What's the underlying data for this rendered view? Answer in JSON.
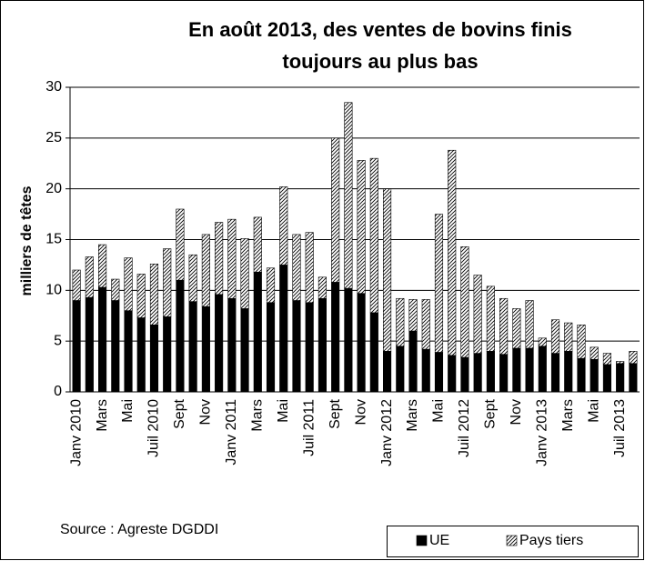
{
  "chart_data": {
    "type": "stacked_bar",
    "title": [
      "En août 2013, des ventes de bovins finis",
      "toujours au plus bas"
    ],
    "y_label": "milliers de têtes",
    "source": "Source : Agreste DGDDI",
    "categories": [
      "Janv 2010",
      null,
      "Mars",
      null,
      "Mai",
      null,
      "Juil 2010",
      null,
      "Sept",
      null,
      "Nov",
      null,
      "Janv 2011",
      null,
      "Mars",
      null,
      "Mai",
      null,
      "Juil 2011",
      null,
      "Sept",
      null,
      "Nov",
      null,
      "Janv 2012",
      null,
      "Mars",
      null,
      "Mai",
      null,
      "Juil 2012",
      null,
      "Sept",
      null,
      "Nov",
      null,
      "Janv 2013",
      null,
      "Mars",
      null,
      "Mai",
      null,
      "Juil 2013",
      null
    ],
    "series": [
      {
        "name": "UE",
        "color": "#000000",
        "hatch": false,
        "values": [
          9.0,
          9.3,
          10.3,
          9.0,
          8.0,
          7.3,
          6.6,
          7.4,
          11.0,
          8.9,
          8.4,
          9.6,
          9.2,
          8.2,
          11.8,
          8.8,
          12.5,
          9.0,
          8.8,
          9.2,
          10.8,
          10.2,
          9.7,
          7.8,
          4.0,
          4.5,
          6.0,
          4.2,
          3.9,
          3.6,
          3.4,
          3.8,
          4.0,
          3.7,
          4.3,
          4.3,
          4.5,
          3.8,
          4.0,
          3.3,
          3.2,
          2.7,
          2.8,
          2.8
        ]
      },
      {
        "name": "Pays tiers",
        "color": "#000000",
        "hatch": true,
        "values": [
          3.0,
          4.0,
          4.2,
          2.1,
          5.2,
          4.3,
          6.0,
          6.7,
          7.0,
          4.6,
          7.1,
          7.1,
          7.8,
          6.9,
          5.4,
          3.4,
          7.7,
          6.5,
          6.9,
          2.1,
          14.2,
          18.3,
          13.1,
          15.2,
          16.0,
          4.7,
          3.1,
          4.9,
          13.6,
          20.2,
          10.9,
          7.7,
          6.4,
          5.5,
          3.9,
          4.7,
          0.8,
          3.3,
          2.8,
          3.3,
          1.2,
          1.1,
          0.2,
          1.2
        ]
      }
    ],
    "ylim": [
      0,
      30
    ],
    "yticks": [
      0,
      5,
      10,
      15,
      20,
      25,
      30
    ],
    "grid": true
  }
}
